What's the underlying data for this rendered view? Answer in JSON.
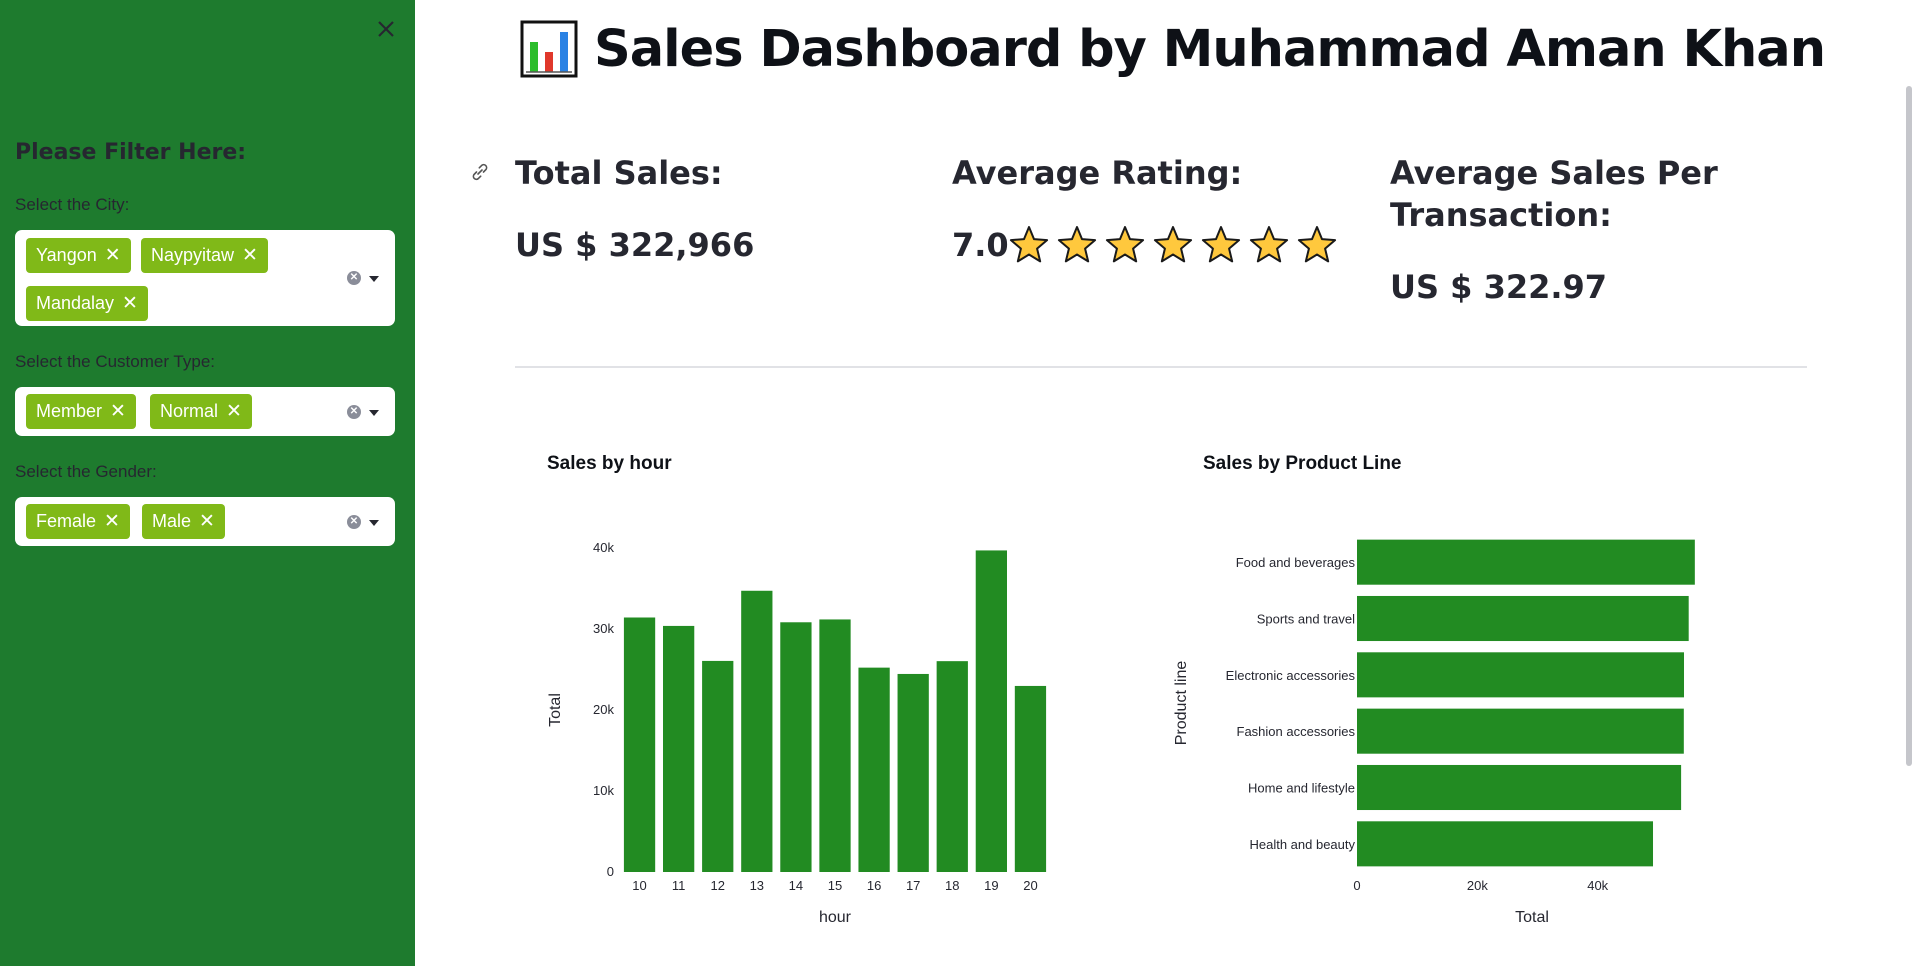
{
  "sidebar": {
    "close_icon": "close-icon",
    "title": "Please Filter Here:",
    "filters": [
      {
        "label": "Select the City:",
        "selected": [
          "Yangon",
          "Naypyitaw",
          "Mandalay"
        ]
      },
      {
        "label": "Select the Customer Type:",
        "selected": [
          "Member",
          "Normal"
        ]
      },
      {
        "label": "Select the Gender:",
        "selected": [
          "Female",
          "Male"
        ]
      }
    ],
    "tag_remove_glyph": "✕",
    "clear_glyph": "✕"
  },
  "header": {
    "icon": "bar-chart-icon",
    "title": "Sales Dashboard by Muhammad Aman Khan"
  },
  "kpis": {
    "total_sales_label": "Total Sales:",
    "total_sales_value": "US $ 322,966",
    "avg_rating_label": "Average Rating:",
    "avg_rating_value": "7.0",
    "avg_rating_stars": 7,
    "avg_sales_label_line1": "Average Sales Per",
    "avg_sales_label_line2": "Transaction:",
    "avg_sales_value": "US $ 322.97"
  },
  "colors": {
    "sidebar_bg": "#1e7b2e",
    "tag_bg": "#80b918",
    "bar_color": "#228b22",
    "star_fill": "#ffc83d"
  },
  "chart_data": [
    {
      "type": "bar",
      "title": "Sales by hour",
      "xlabel": "hour",
      "ylabel": "Total",
      "categories": [
        "10",
        "11",
        "12",
        "13",
        "14",
        "15",
        "16",
        "17",
        "18",
        "19",
        "20"
      ],
      "values": [
        31420,
        30380,
        26060,
        34720,
        30830,
        31180,
        25230,
        24450,
        26030,
        39700,
        22970
      ],
      "ylim": [
        0,
        40000
      ],
      "yticks": [
        0,
        10000,
        20000,
        30000,
        40000
      ],
      "ytick_labels": [
        "0",
        "10k",
        "20k",
        "30k",
        "40k"
      ],
      "grid": false
    },
    {
      "type": "bar",
      "orientation": "horizontal",
      "title": "Sales by Product Line",
      "xlabel": "Total",
      "ylabel": "Product line",
      "categories": [
        "Food and beverages",
        "Sports and travel",
        "Electronic accessories",
        "Fashion accessories",
        "Home and lifestyle",
        "Health and beauty"
      ],
      "values": [
        56140,
        55120,
        54340,
        54310,
        53860,
        49190
      ],
      "xlim": [
        0,
        56500
      ],
      "xticks": [
        0,
        20000,
        40000
      ],
      "xtick_labels": [
        "0",
        "20k",
        "40k"
      ],
      "grid": false
    }
  ]
}
